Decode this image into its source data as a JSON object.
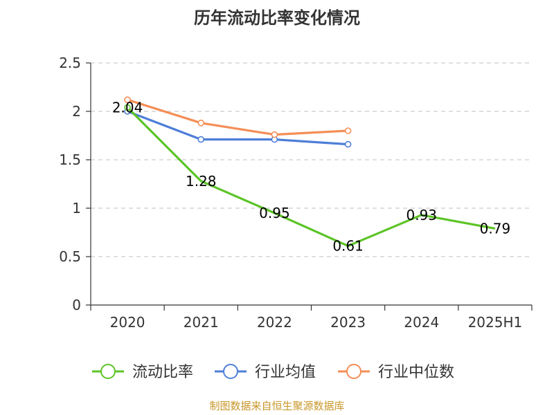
{
  "title": "历年流动比率变化情况",
  "footer": "制图数据来自恒生聚源数据库",
  "chart_data": {
    "type": "line",
    "categories": [
      "2020",
      "2021",
      "2022",
      "2023",
      "2024",
      "2025H1"
    ],
    "ylim": [
      0,
      2.5
    ],
    "yticks": [
      "0",
      "0.5",
      "1",
      "1.5",
      "2",
      "2.5"
    ],
    "grid": true,
    "legend_position": "bottom",
    "series": [
      {
        "name": "流动比率",
        "color": "#5cc427",
        "values": [
          2.04,
          1.28,
          0.95,
          0.61,
          0.93,
          0.79
        ],
        "labels": [
          "2.04",
          "1.28",
          "0.95",
          "0.61",
          "0.93",
          "0.79"
        ],
        "markers": [
          true,
          false,
          false,
          false,
          false,
          false
        ]
      },
      {
        "name": "行业均值",
        "color": "#4e7fd8",
        "values": [
          2.0,
          1.71,
          1.71,
          1.66,
          null,
          null
        ]
      },
      {
        "name": "行业中位数",
        "color": "#f58e56",
        "values": [
          2.12,
          1.88,
          1.76,
          1.8,
          null,
          null
        ]
      }
    ]
  }
}
